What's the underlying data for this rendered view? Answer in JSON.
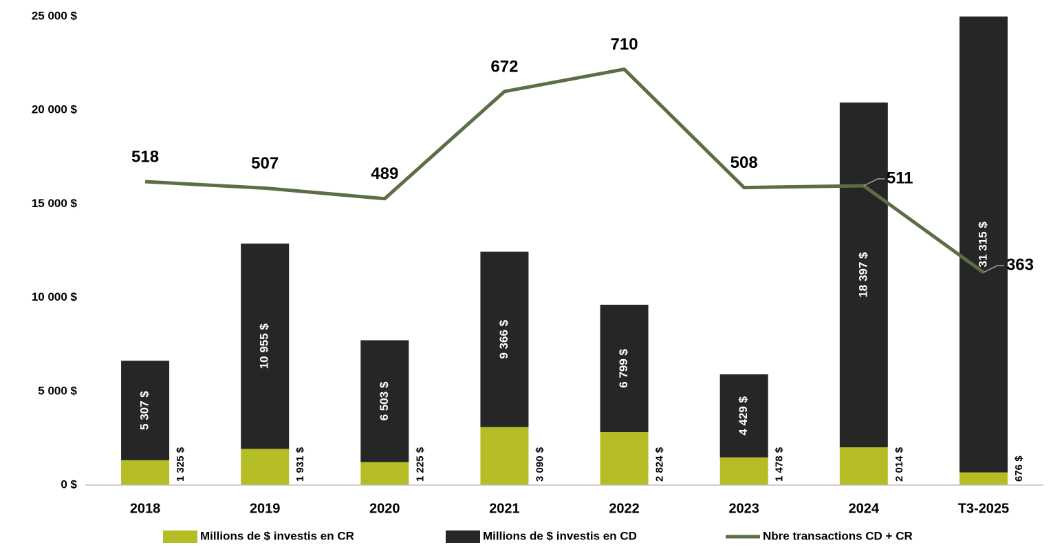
{
  "chart_data": {
    "type": "bar",
    "categories": [
      "2018",
      "2019",
      "2020",
      "2021",
      "2022",
      "2023",
      "2024",
      "T3-2025"
    ],
    "stacked": true,
    "series": [
      {
        "name": "Millions de $ investis en CR",
        "color": "#b5bd24",
        "values": [
          1325,
          1931,
          1225,
          3090,
          2824,
          1478,
          2014,
          676
        ],
        "value_labels": [
          "1 325 $",
          "1 931 $",
          "1 225 $",
          "3 090 $",
          "2 824 $",
          "1 478 $",
          "2 014 $",
          "676 $"
        ]
      },
      {
        "name": "Millions de $ investis en CD",
        "color": "#262626",
        "values": [
          5307,
          10955,
          6503,
          9366,
          6799,
          4429,
          18397,
          31315
        ],
        "value_labels": [
          "5 307 $",
          "10 955 $",
          "6 503 $",
          "9 366 $",
          "6 799 $",
          "4 429 $",
          "18 397 $",
          "31 315 $"
        ]
      },
      {
        "name": "Nbre transactions CD + CR",
        "color": "#5b6e46",
        "type": "line",
        "axis": "y2",
        "values": [
          518,
          507,
          489,
          672,
          710,
          508,
          511,
          363
        ]
      }
    ],
    "ylim": [
      0,
      25000
    ],
    "yticks": [
      {
        "value": 0,
        "label": "0 $"
      },
      {
        "value": 5000,
        "label": "5 000 $"
      },
      {
        "value": 10000,
        "label": "10 000 $"
      },
      {
        "value": 15000,
        "label": "15 000 $"
      },
      {
        "value": 20000,
        "label": "20 000 $"
      },
      {
        "value": 25000,
        "label": "25 000 $"
      }
    ],
    "y2lim": [
      0,
      800
    ],
    "grid": false,
    "legend": "bottom"
  }
}
